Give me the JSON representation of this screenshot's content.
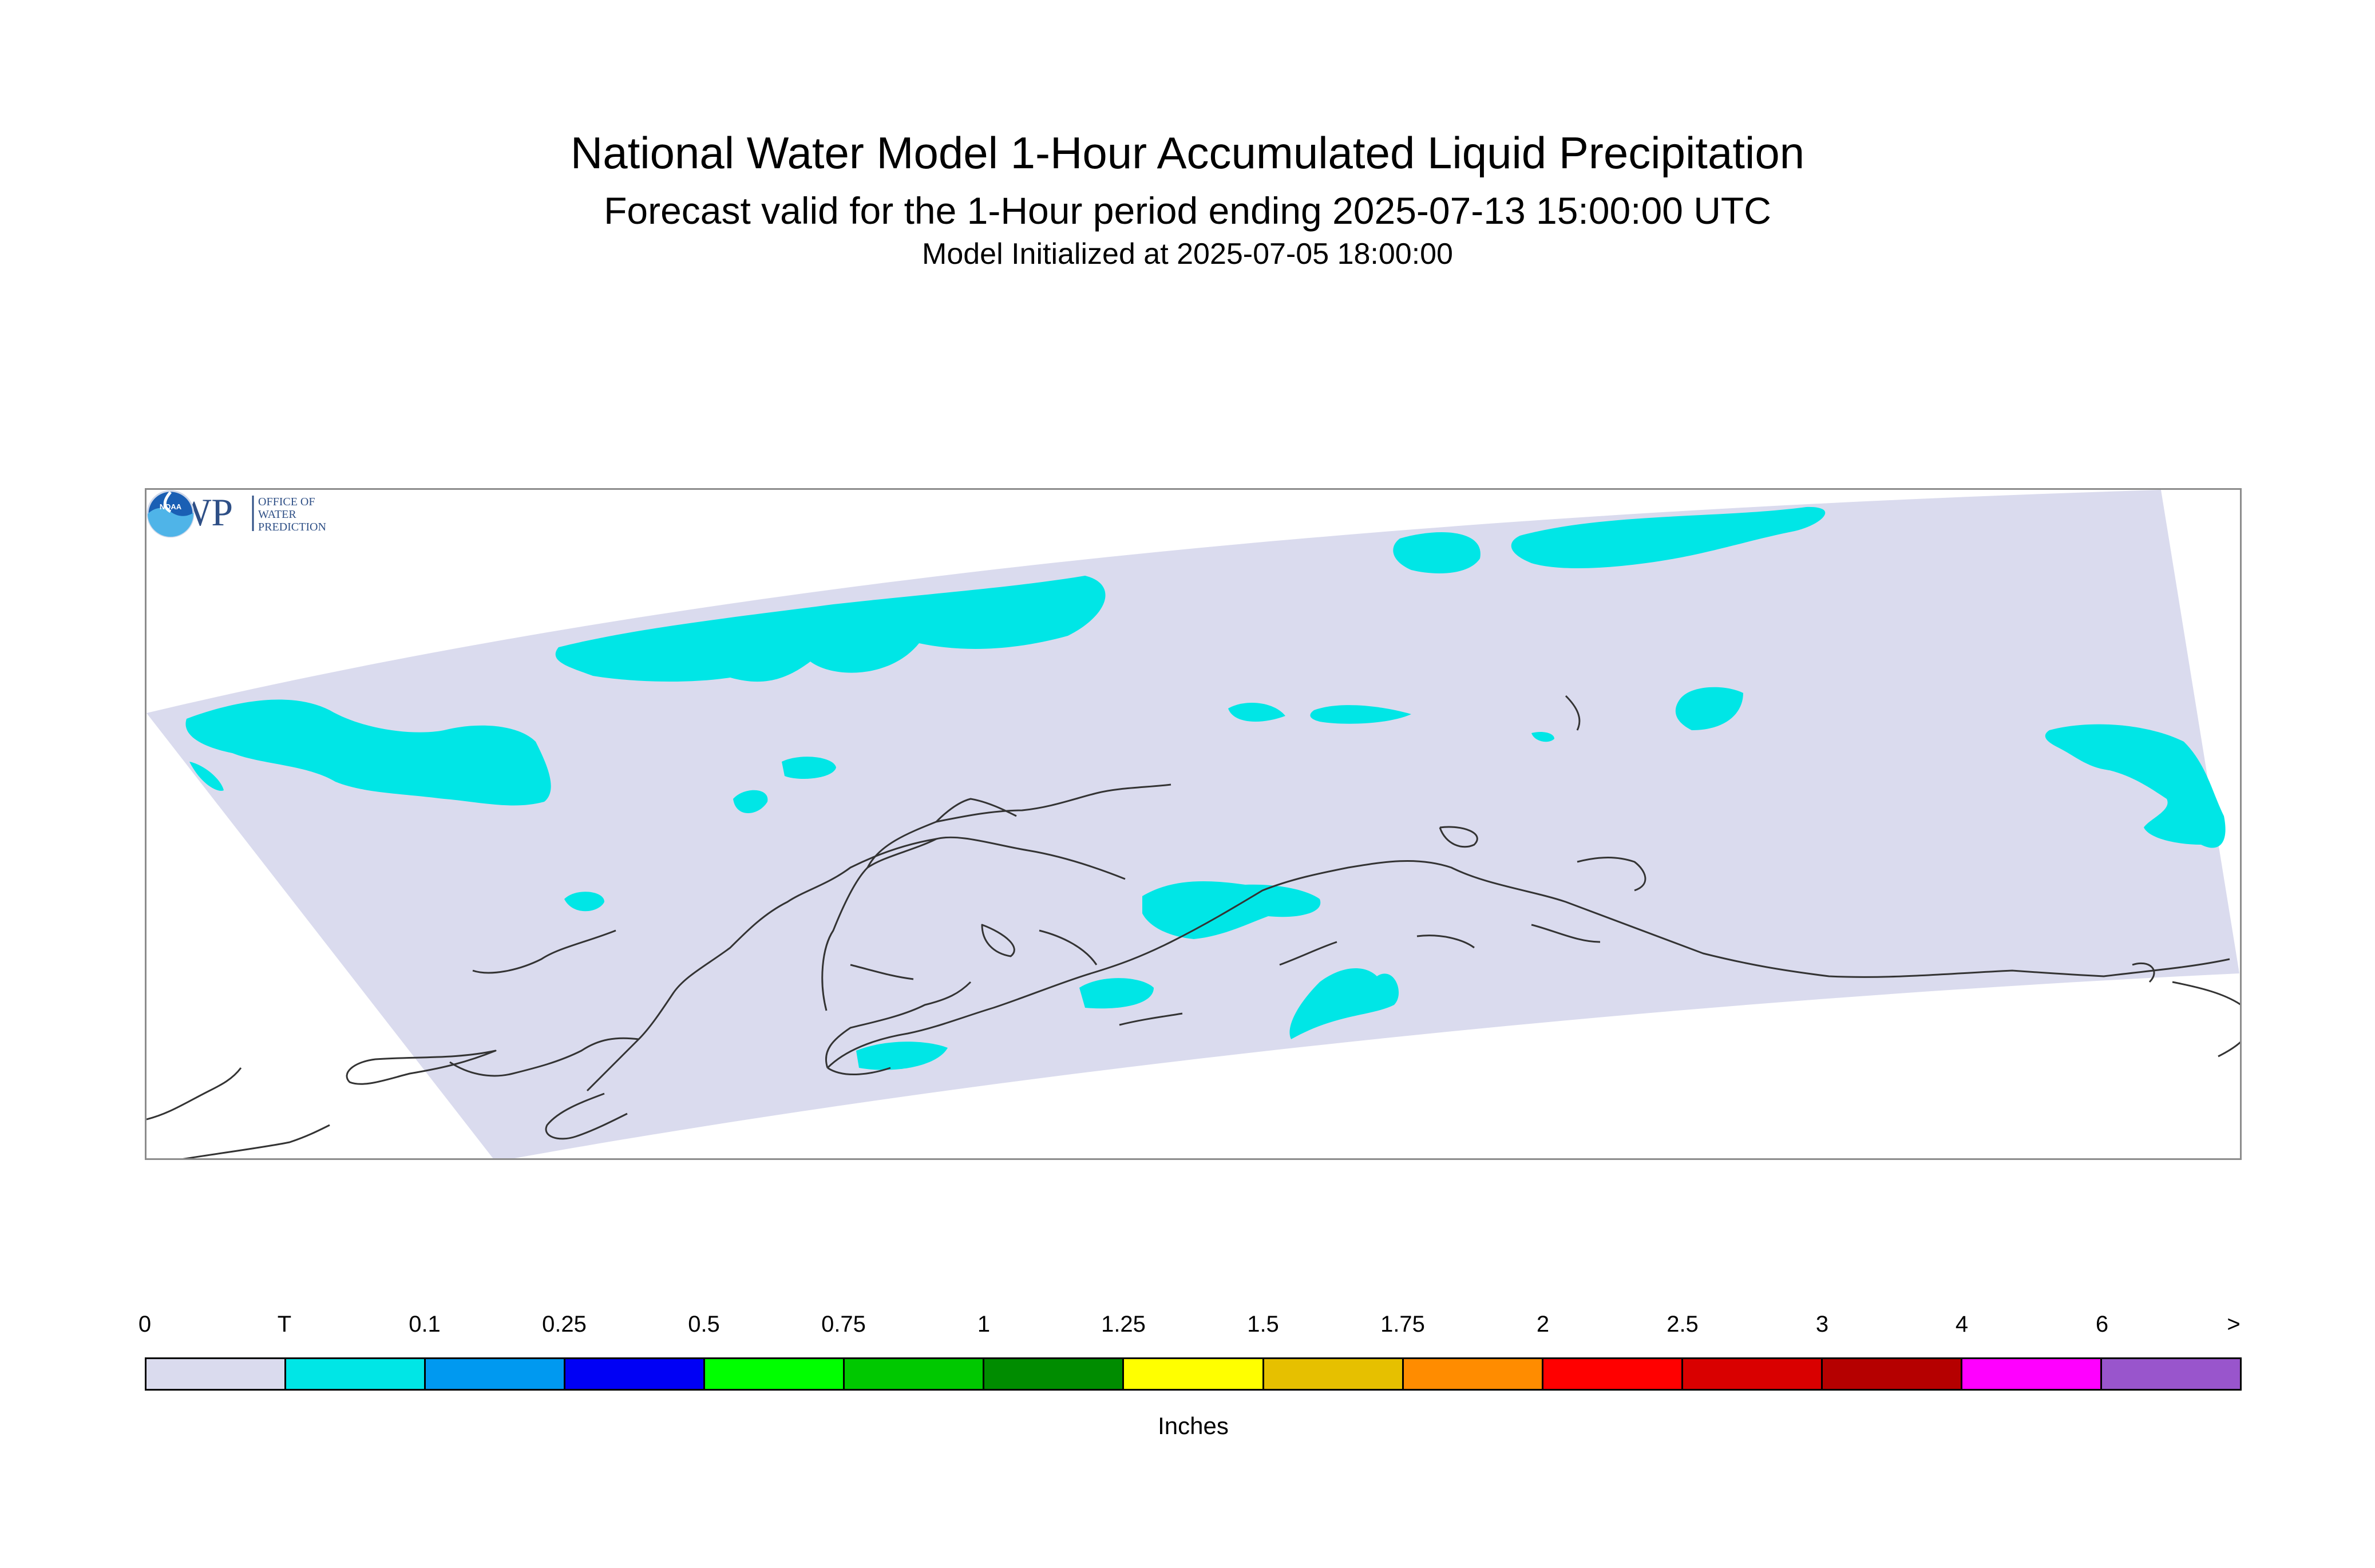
{
  "header": {
    "title": "National Water Model 1-Hour Accumulated Liquid Precipitation",
    "subtitle": "Forecast valid for the 1-Hour period ending 2025-07-13 15:00:00 UTC",
    "init_line": "Model Initialized at 2025-07-05 18:00:00"
  },
  "map": {
    "region": "Alaska domain",
    "icons": [
      "owp-logo",
      "noaa-logo"
    ],
    "colors": {
      "domain_fill": "#dadbee",
      "trace_precip": "#00e6e6",
      "coastline": "#333333"
    }
  },
  "logos": {
    "owp": {
      "mark": "OWP",
      "line1": "OFFICE OF",
      "line2": "WATER",
      "line3": "PREDICTION"
    },
    "noaa": {
      "mark": "NOAA"
    }
  },
  "legend": {
    "units_label": "Inches",
    "ticks": [
      "0",
      "T",
      "0.1",
      "0.25",
      "0.5",
      "0.75",
      "1",
      "1.25",
      "1.5",
      "1.75",
      "2",
      "2.5",
      "3",
      "4",
      "6",
      ">"
    ],
    "colors": [
      "#dadbee",
      "#00e6e6",
      "#0099f0",
      "#0000f5",
      "#00ff00",
      "#00c800",
      "#008c00",
      "#ffff00",
      "#e6c000",
      "#ff8c00",
      "#ff0000",
      "#d90000",
      "#b50000",
      "#ff00ff",
      "#9955cc"
    ]
  }
}
